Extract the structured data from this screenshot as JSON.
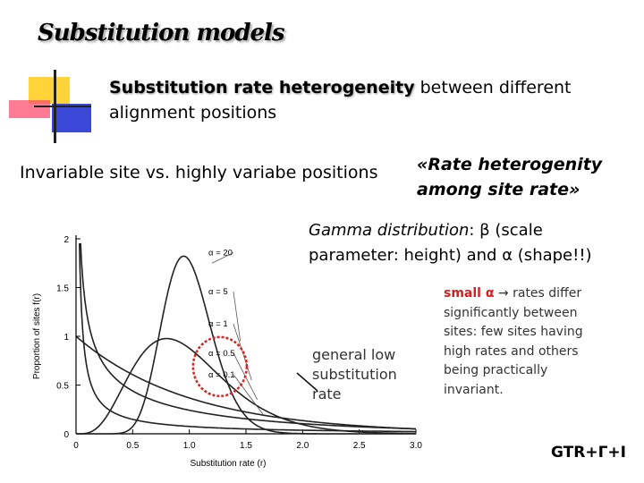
{
  "slide": {
    "title": "Substitution models",
    "subtitle_bold": "Substitution rate heterogeneity",
    "subtitle_rest_1": " between different",
    "subtitle_rest_2": "alignment positions",
    "invariable_text": "Invariable site vs. highly variabe positions",
    "rate_het_line1": "«Rate heterogenity",
    "rate_het_line2": "among site rate»",
    "gamma_label": "Gamma distribution",
    "gamma_line1_rest": ": β (scale",
    "gamma_line2": "parameter: height) and α (shape!!)",
    "low_rate_lines": [
      "general low",
      "substitution",
      "rate"
    ],
    "small_alpha_prefix": "small α",
    "small_alpha_arrow": "→",
    "small_alpha_rest": " rates differ",
    "small_alpha_lines": [
      "significantly between",
      "sites: few sites having",
      "high rates and others",
      "being practically",
      "invariant."
    ],
    "gtr_label": "GTR+Γ+I"
  },
  "chart_data": {
    "type": "line",
    "title": "",
    "xlabel": "Substitution rate (r)",
    "ylabel": "Proportion of sites f(r)",
    "xlim": [
      0,
      3.0
    ],
    "ylim": [
      0,
      2
    ],
    "x_ticks": [
      "0",
      "0.5",
      "1.0",
      "1.5",
      "2.0",
      "2.5",
      "3.0"
    ],
    "y_ticks": [
      "0",
      "0.5",
      "1",
      "1.5",
      "2"
    ],
    "series": [
      {
        "name": "α = 20",
        "alpha": 20
      },
      {
        "name": "α = 5",
        "alpha": 5
      },
      {
        "name": "α = 1",
        "alpha": 1
      },
      {
        "name": "α = 0.5",
        "alpha": 0.5
      },
      {
        "name": "α = 0.1",
        "alpha": 0.1
      }
    ],
    "highlight": [
      "α = 0.5",
      "α = 0.1"
    ],
    "colors": {
      "curve": "#222222",
      "highlight": "#e02020",
      "axis": "#000000"
    }
  }
}
